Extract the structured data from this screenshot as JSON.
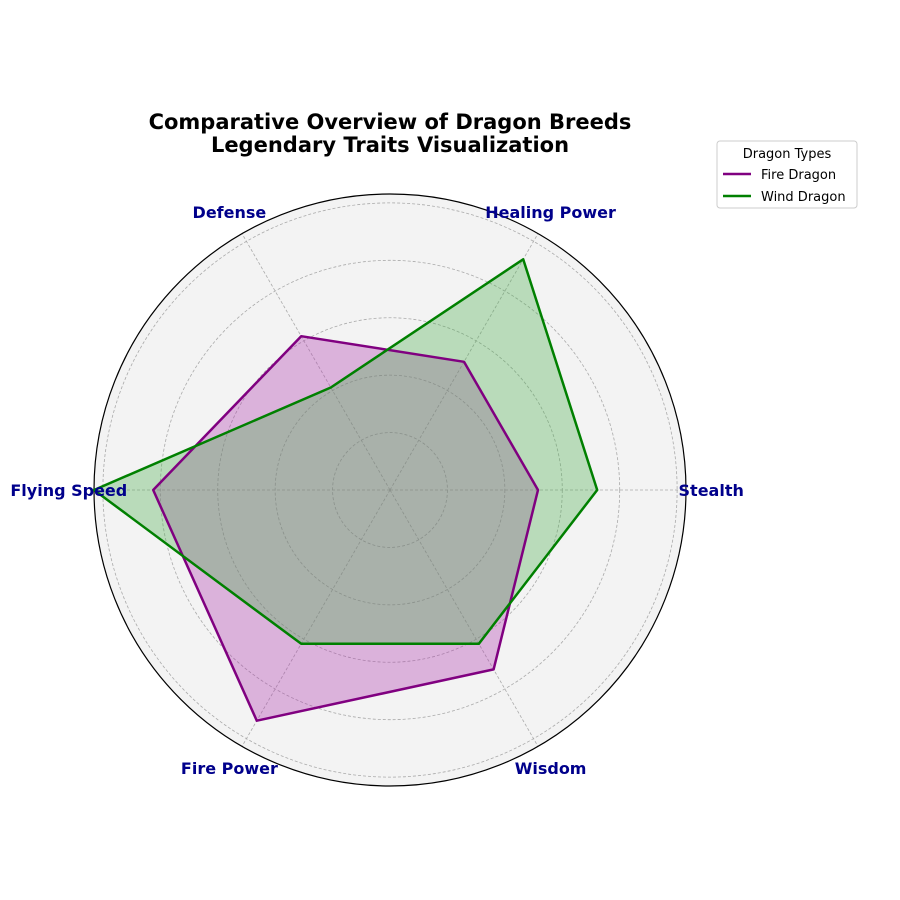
{
  "chart_data": {
    "type": "radar",
    "title": [
      "Comparative Overview of Dragon Breeds",
      "Legendary Traits Visualization"
    ],
    "categories": [
      "Stealth",
      "Healing Power",
      "Defense",
      "Flying Speed",
      "Fire Power",
      "Wisdom"
    ],
    "rlim": [
      0,
      10
    ],
    "grid": true,
    "series": [
      {
        "name": "Fire Dragon",
        "values": [
          5,
          5,
          6,
          8,
          9,
          7
        ],
        "line_color": "#800080",
        "fill_color": "#b03ab0"
      },
      {
        "name": "Wind Dragon",
        "values": [
          7,
          9,
          4,
          10,
          6,
          6
        ],
        "line_color": "#008000",
        "fill_color": "#4caf50"
      }
    ],
    "legend": {
      "title": "Dragon Types",
      "placement": "top-right"
    },
    "colors": {
      "axis_label": "#00008b",
      "plot_background": "#f3f3f3",
      "grid": "#aaaaaa"
    }
  }
}
